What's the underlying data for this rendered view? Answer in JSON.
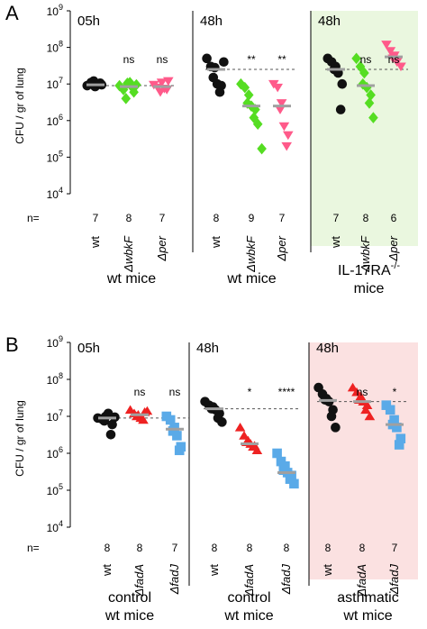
{
  "figure": {
    "ylabel": "CFU / gr of lung",
    "n_label": "n="
  },
  "chart_data": [
    {
      "type": "scatter",
      "panel_letter": "A",
      "ylabel": "CFU / gr of lung",
      "yscale": "log",
      "ylim": [
        10000,
        1000000000
      ],
      "yticks": [
        "10^4",
        "10^5",
        "10^6",
        "10^7",
        "10^8",
        "10^9"
      ],
      "colors": {
        "wt": "#111111",
        "mutant1": "#55dd22",
        "mutant2": "#ff5a8a",
        "shade": "#eaf7df",
        "median": "#a0a0a0"
      },
      "groups": [
        {
          "time": "05h",
          "mice": [
            "wt mice"
          ],
          "shaded": false,
          "control_line": 9000000,
          "strains": [
            {
              "label": "wt",
              "italic": false,
              "marker": "circle",
              "color": "#111111",
              "n": 7,
              "sig": "",
              "median": 9500000,
              "values": [
                9000000,
                11000000,
                8500000,
                12000000,
                10000000,
                9500000,
                10500000
              ]
            },
            {
              "label": "ΔwbkF",
              "italic": true,
              "marker": "diamond",
              "color": "#55dd22",
              "n": 8,
              "sig": "ns",
              "median": 8500000,
              "values": [
                9000000,
                7000000,
                10500000,
                4000000,
                11000000,
                6000000,
                8000000,
                9500000
              ]
            },
            {
              "label": "Δper",
              "italic": true,
              "marker": "triangle-down",
              "color": "#ff5a8a",
              "n": 7,
              "sig": "ns",
              "median": 8500000,
              "values": [
                9500000,
                8000000,
                11000000,
                6000000,
                7500000,
                12000000,
                7000000
              ]
            }
          ]
        },
        {
          "time": "48h",
          "mice": [
            "wt mice"
          ],
          "shaded": false,
          "control_line": 25000000,
          "strains": [
            {
              "label": "wt",
              "italic": false,
              "marker": "circle",
              "color": "#111111",
              "n": 8,
              "sig": "",
              "median": 25000000,
              "values": [
                50000000,
                30000000,
                28000000,
                15000000,
                10000000,
                9000000,
                6000000,
                40000000
              ]
            },
            {
              "label": "ΔwbkF",
              "italic": true,
              "marker": "diamond",
              "color": "#55dd22",
              "n": 9,
              "sig": "**",
              "median": 2500000,
              "values": [
                10000000,
                8000000,
                5000000,
                3000000,
                2500000,
                2000000,
                1200000,
                800000,
                170000
              ]
            },
            {
              "label": "Δper",
              "italic": true,
              "marker": "triangle-down",
              "color": "#ff5a8a",
              "n": 7,
              "sig": "**",
              "median": 2500000,
              "values": [
                10000000,
                8000000,
                3000000,
                2000000,
                700000,
                400000,
                200000
              ]
            }
          ]
        },
        {
          "time": "48h",
          "mice": [
            "IL-17RA",
            "mice"
          ],
          "superscript": "-/-",
          "shaded": true,
          "control_line": 25000000,
          "strains": [
            {
              "label": "wt",
              "italic": false,
              "marker": "circle",
              "color": "#111111",
              "n": 7,
              "sig": "",
              "median": 25000000,
              "values": [
                50000000,
                40000000,
                30000000,
                25000000,
                20000000,
                10000000,
                2000000
              ]
            },
            {
              "label": "ΔwbkF",
              "italic": true,
              "marker": "diamond",
              "color": "#55dd22",
              "n": 8,
              "sig": "ns",
              "median": 9000000,
              "values": [
                50000000,
                30000000,
                20000000,
                10000000,
                8000000,
                5000000,
                3000000,
                1200000
              ]
            },
            {
              "label": "Δper",
              "italic": true,
              "marker": "triangle-down",
              "color": "#ff5a8a",
              "n": 6,
              "sig": "ns",
              "median": 55000000,
              "values": [
                120000000,
                80000000,
                60000000,
                50000000,
                40000000,
                30000000
              ]
            }
          ]
        }
      ]
    },
    {
      "type": "scatter",
      "panel_letter": "B",
      "ylabel": "CFU / gr of lung",
      "yscale": "log",
      "ylim": [
        10000,
        1000000000
      ],
      "yticks": [
        "10^4",
        "10^5",
        "10^6",
        "10^7",
        "10^8",
        "10^9"
      ],
      "colors": {
        "wt": "#111111",
        "mutant1": "#ee2222",
        "mutant2": "#5aaae8",
        "shade": "#fbe1e1",
        "median": "#a0a0a0"
      },
      "groups": [
        {
          "time": "05h",
          "mice": [
            "control",
            "wt mice"
          ],
          "shaded": false,
          "control_line": 9000000,
          "strains": [
            {
              "label": "wt",
              "italic": false,
              "marker": "circle",
              "color": "#111111",
              "n": 8,
              "sig": "",
              "median": 9000000,
              "values": [
                9000000,
                8500000,
                10000000,
                7500000,
                12000000,
                6000000,
                3200000,
                9500000
              ]
            },
            {
              "label": "ΔfadA",
              "italic": true,
              "marker": "triangle-up",
              "color": "#ee2222",
              "n": 8,
              "sig": "ns",
              "median": 11000000,
              "values": [
                15000000,
                12000000,
                11000000,
                10000000,
                9000000,
                13000000,
                8000000,
                14000000
              ]
            },
            {
              "label": "ΔfadJ",
              "italic": true,
              "marker": "square",
              "color": "#5aaae8",
              "n": 7,
              "sig": "ns",
              "median": 4500000,
              "values": [
                10000000,
                8000000,
                5000000,
                4000000,
                3000000,
                1500000,
                1200000
              ]
            }
          ]
        },
        {
          "time": "48h",
          "mice": [
            "control",
            "wt mice"
          ],
          "shaded": false,
          "control_line": 16000000,
          "strains": [
            {
              "label": "wt",
              "italic": false,
              "marker": "circle",
              "color": "#111111",
              "n": 8,
              "sig": "",
              "median": 16000000,
              "values": [
                25000000,
                20000000,
                18000000,
                16000000,
                15000000,
                12000000,
                9000000,
                7000000
              ]
            },
            {
              "label": "ΔfadA",
              "italic": true,
              "marker": "triangle-up",
              "color": "#ee2222",
              "n": 8,
              "sig": "*",
              "median": 1800000,
              "values": [
                5000000,
                3000000,
                2200000,
                2000000,
                1800000,
                1600000,
                1500000,
                1200000
              ]
            },
            {
              "label": "ΔfadJ",
              "italic": true,
              "marker": "square",
              "color": "#5aaae8",
              "n": 8,
              "sig": "****",
              "median": 300000,
              "values": [
                1000000,
                600000,
                450000,
                350000,
                300000,
                250000,
                200000,
                150000
              ]
            }
          ]
        },
        {
          "time": "48h",
          "mice": [
            "asthmatic",
            "wt mice"
          ],
          "shaded": true,
          "control_line": 25000000,
          "strains": [
            {
              "label": "wt",
              "italic": false,
              "marker": "circle",
              "color": "#111111",
              "n": 8,
              "sig": "",
              "median": 27000000,
              "values": [
                60000000,
                40000000,
                30000000,
                28000000,
                25000000,
                15000000,
                10000000,
                5000000
              ]
            },
            {
              "label": "ΔfadA",
              "italic": true,
              "marker": "triangle-up",
              "color": "#ee2222",
              "n": 8,
              "sig": "ns",
              "median": 25000000,
              "values": [
                60000000,
                45000000,
                35000000,
                28000000,
                25000000,
                20000000,
                15000000,
                10000000
              ]
            },
            {
              "label": "ΔfadJ",
              "italic": true,
              "marker": "square",
              "color": "#5aaae8",
              "n": 7,
              "sig": "*",
              "median": 6000000,
              "values": [
                20000000,
                15000000,
                8000000,
                6000000,
                5000000,
                2500000,
                1700000
              ]
            }
          ]
        }
      ]
    }
  ]
}
